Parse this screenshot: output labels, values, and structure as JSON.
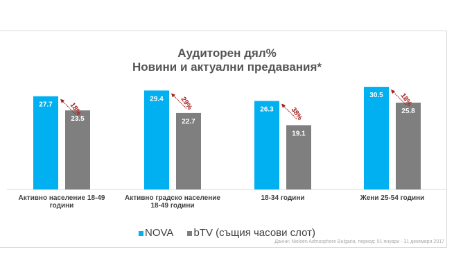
{
  "chart_data": {
    "type": "bar",
    "title": [
      "Аудиторен дял%",
      "Новини и актуални предавания*"
    ],
    "categories": [
      "Активно население 18-49 години",
      "Активно градско население 18-49 години",
      "18-34 години",
      "Жени 25-54 години"
    ],
    "series": [
      {
        "name": "NOVA",
        "color": "#00b0f0",
        "values": [
          27.7,
          29.4,
          26.3,
          30.5
        ]
      },
      {
        "name": "bTV (същия часови слот)",
        "color": "#7f7f7f",
        "values": [
          23.5,
          22.7,
          19.1,
          25.8
        ]
      }
    ],
    "differences": [
      "18%",
      "29%",
      "38%",
      "18%"
    ],
    "difference_color": "#a51c1c",
    "ylim": [
      0,
      31
    ],
    "grid": false,
    "legend": "bottom",
    "source": "Данни: Nielsen Admosphere Bulgaria, период: 01 януари - 31 декември 2017"
  }
}
